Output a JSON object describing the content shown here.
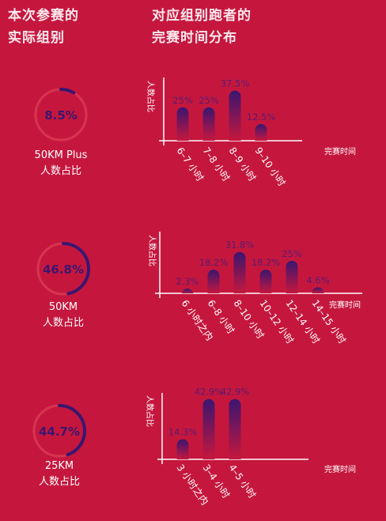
{
  "header": {
    "left_line1": "本次参赛的",
    "left_line2": "实际组别",
    "right_line1": "对应组别跑者的",
    "right_line2": "完赛时间分布"
  },
  "colors": {
    "background": "#c5173e",
    "ring_track": "#d8344f",
    "ring_arc": "#3a1670",
    "bar_top": "#3a1670",
    "bar_bottom": "#c5173e",
    "value_label": "#5a1b6e"
  },
  "chart_data": [
    {
      "type": "bar",
      "group": "50KM Plus",
      "share_pct": 8.5,
      "share_label": "8.5%",
      "caption_line1": "50KM Plus",
      "caption_line2": "人数占比",
      "ylabel": "人数占比",
      "xlabel": "完赛时间",
      "ylim": [
        0,
        45
      ],
      "categories": [
        "6–7 小时",
        "7–8 小时",
        "8–9 小时",
        "9–10 小时"
      ],
      "values": [
        25,
        25,
        37.5,
        12.5
      ],
      "value_labels": [
        "25%",
        "25%",
        "37.5%",
        "12.5%"
      ]
    },
    {
      "type": "bar",
      "group": "50KM",
      "share_pct": 46.8,
      "share_label": "46.8%",
      "caption_line1": "50KM",
      "caption_line2": "人数占比",
      "ylabel": "人数占比",
      "xlabel": "完赛时间",
      "ylim": [
        0,
        45
      ],
      "categories": [
        "6 小时之内",
        "6–8 小时",
        "8–10 小时",
        "10–12 小时",
        "12–14 小时",
        "14–15 小时"
      ],
      "values": [
        2.3,
        18.2,
        31.8,
        18.2,
        25,
        4.6
      ],
      "value_labels": [
        "2.3%",
        "18.2%",
        "31.8%",
        "18.2%",
        "25%",
        "4.6%"
      ]
    },
    {
      "type": "bar",
      "group": "25KM",
      "share_pct": 44.7,
      "share_label": "44.7%",
      "caption_line1": "25KM",
      "caption_line2": "人数占比",
      "ylabel": "人数占比",
      "xlabel": "完赛时间",
      "ylim": [
        0,
        45
      ],
      "categories": [
        "3 小时之内",
        "3–4 小时",
        "4–5 小时"
      ],
      "values": [
        14.3,
        42.9,
        42.9
      ],
      "value_labels": [
        "14.3%",
        "42.9%",
        "42.9%"
      ]
    }
  ]
}
